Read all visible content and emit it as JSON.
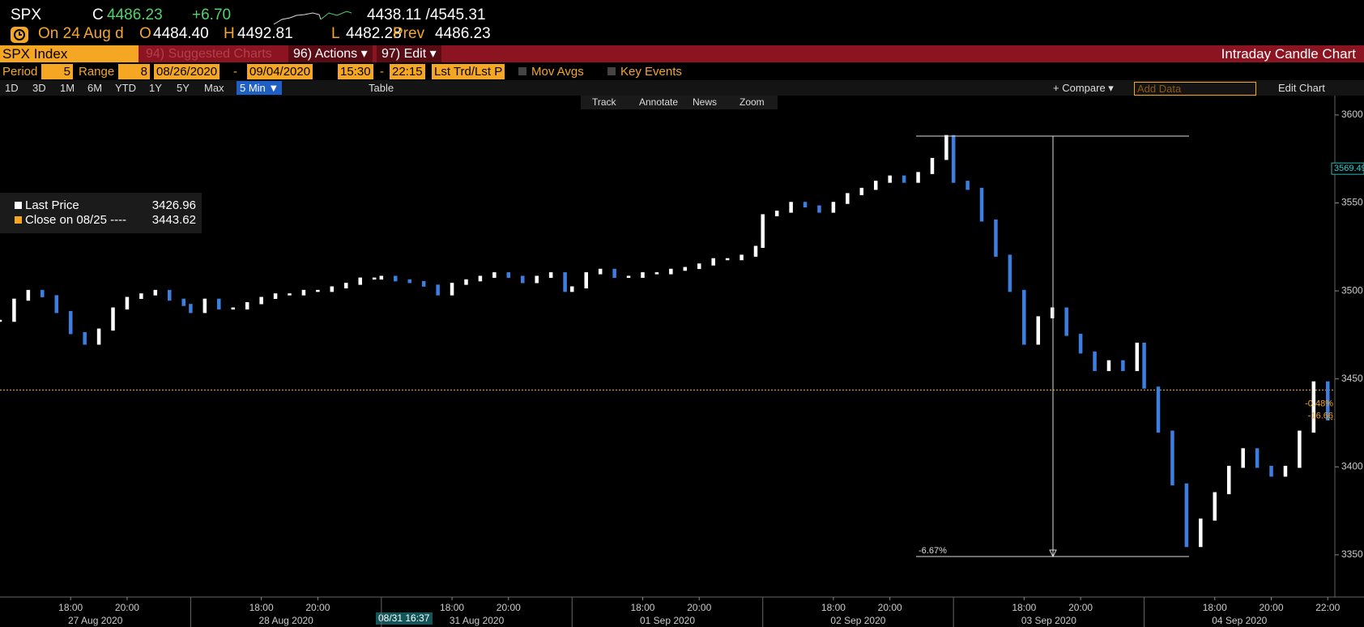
{
  "header": {
    "ticker": "SPX",
    "c": "C",
    "price": "4486.23",
    "change": "+6.70",
    "range": "4438.11 /4545.31",
    "date": "On 24 Aug d",
    "o_label": "O",
    "open": "4484.40",
    "h_label": "H",
    "high": "4492.81",
    "l_label": "L",
    "low": "4482.28",
    "prev_label": "Prev",
    "prev": "4486.23"
  },
  "menu": {
    "security": "SPX Index",
    "suggested": "94) Suggested Charts",
    "actions": "96) Actions ▾",
    "edit": "97) Edit ▾",
    "title": "Intraday Candle Chart"
  },
  "settings": {
    "period_label": "Period",
    "period": "5",
    "range_label": "Range",
    "range": "8",
    "start": "08/26/2020",
    "dash": "-",
    "end": "09/04/2020",
    "time_start": "15:30",
    "time_end": "22:15",
    "mode": "Lst Trd/Lst P",
    "mov_avgs": "Mov Avgs",
    "key_events": "Key Events"
  },
  "toolbar": {
    "ranges": [
      "1D",
      "3D",
      "1M",
      "6M",
      "YTD",
      "1Y",
      "5Y",
      "Max"
    ],
    "interval": "5 Min ▼",
    "table": "Table",
    "compare": "+ Compare ▾",
    "add_data": "Add Data",
    "edit_chart": "Edit Chart",
    "tools": [
      "Track",
      "Annotate",
      "News",
      "Zoom"
    ]
  },
  "cursor_label": "08/31 16:37",
  "chart_data": {
    "type": "candle",
    "title": "Intraday Candle Chart",
    "x": [
      "2020-08-27 15:30",
      "2020-08-27 16:00",
      "2020-08-27 16:30",
      "2020-08-27 17:00",
      "2020-08-27 17:30",
      "2020-08-27 18:00",
      "2020-08-27 18:30",
      "2020-08-27 19:00",
      "2020-08-27 19:30",
      "2020-08-27 20:00",
      "2020-08-27 20:30",
      "2020-08-27 21:00",
      "2020-08-27 21:30",
      "2020-08-27 22:00",
      "2020-08-28 15:30",
      "2020-08-28 16:00",
      "2020-08-28 16:30",
      "2020-08-28 17:00",
      "2020-08-28 17:30",
      "2020-08-28 18:00",
      "2020-08-28 18:30",
      "2020-08-28 19:00",
      "2020-08-28 19:30",
      "2020-08-28 20:00",
      "2020-08-28 20:30",
      "2020-08-28 21:00",
      "2020-08-28 21:30",
      "2020-08-28 22:00",
      "2020-08-31 15:30",
      "2020-08-31 16:00",
      "2020-08-31 16:30",
      "2020-08-31 17:00",
      "2020-08-31 17:30",
      "2020-08-31 18:00",
      "2020-08-31 18:30",
      "2020-08-31 19:00",
      "2020-08-31 19:30",
      "2020-08-31 20:00",
      "2020-08-31 20:30",
      "2020-08-31 21:00",
      "2020-08-31 21:30",
      "2020-08-31 22:00",
      "2020-09-01 15:30",
      "2020-09-01 16:00",
      "2020-09-01 16:30",
      "2020-09-01 17:00",
      "2020-09-01 17:30",
      "2020-09-01 18:00",
      "2020-09-01 18:30",
      "2020-09-01 19:00",
      "2020-09-01 19:30",
      "2020-09-01 20:00",
      "2020-09-01 20:30",
      "2020-09-01 21:00",
      "2020-09-01 21:30",
      "2020-09-01 22:00",
      "2020-09-02 15:30",
      "2020-09-02 16:00",
      "2020-09-02 16:30",
      "2020-09-02 17:00",
      "2020-09-02 17:30",
      "2020-09-02 18:00",
      "2020-09-02 18:30",
      "2020-09-02 19:00",
      "2020-09-02 19:30",
      "2020-09-02 20:00",
      "2020-09-02 20:30",
      "2020-09-02 21:00",
      "2020-09-02 21:30",
      "2020-09-02 22:00",
      "2020-09-03 15:30",
      "2020-09-03 16:00",
      "2020-09-03 16:30",
      "2020-09-03 17:00",
      "2020-09-03 17:30",
      "2020-09-03 18:00",
      "2020-09-03 18:30",
      "2020-09-03 19:00",
      "2020-09-03 19:30",
      "2020-09-03 20:00",
      "2020-09-03 20:30",
      "2020-09-03 21:00",
      "2020-09-03 21:30",
      "2020-09-03 22:00",
      "2020-09-04 15:30",
      "2020-09-04 16:00",
      "2020-09-04 16:30",
      "2020-09-04 17:00",
      "2020-09-04 17:30",
      "2020-09-04 18:00",
      "2020-09-04 18:30",
      "2020-09-04 19:00",
      "2020-09-04 19:30",
      "2020-09-04 20:00",
      "2020-09-04 20:30",
      "2020-09-04 21:00",
      "2020-09-04 21:30",
      "2020-09-04 22:00"
    ],
    "series": [
      {
        "name": "Last Price",
        "color": "#ffffff",
        "down_color": "#3d7fe0",
        "values": [
          3483,
          3495,
          3500,
          3497,
          3488,
          3476,
          3470,
          3478,
          3490,
          3496,
          3498,
          3500,
          3495,
          3492,
          3488,
          3495,
          3490,
          3490,
          3493,
          3496,
          3498,
          3498,
          3500,
          3500,
          3502,
          3504,
          3507,
          3507,
          3508,
          3506,
          3505,
          3503,
          3498,
          3504,
          3506,
          3508,
          3510,
          3508,
          3505,
          3508,
          3510,
          3500,
          3502,
          3510,
          3512,
          3508,
          3508,
          3510,
          3510,
          3512,
          3513,
          3515,
          3518,
          3518,
          3520,
          3525,
          3543,
          3545,
          3550,
          3548,
          3545,
          3550,
          3555,
          3558,
          3562,
          3565,
          3562,
          3567,
          3575,
          3588,
          3562,
          3558,
          3540,
          3520,
          3500,
          3470,
          3485,
          3490,
          3475,
          3465,
          3455,
          3460,
          3455,
          3470,
          3445,
          3420,
          3390,
          3355,
          3370,
          3385,
          3400,
          3410,
          3400,
          3395,
          3400,
          3420,
          3448,
          3426.96
        ]
      }
    ],
    "reference_line": {
      "name": "Close on 08/25 ----",
      "value": 3443.62,
      "color": "#f5a623"
    },
    "change_labels": [
      {
        "value": -0.48,
        "label": "-0.48%"
      },
      -16.66
    ],
    "price_tag": 3569.49,
    "measure": {
      "high": 3588,
      "low": 3349,
      "label": "-6.67%"
    },
    "xlim": [
      "2020-08-27 15:30",
      "2020-09-04 22:15"
    ],
    "xticks": [
      {
        "value": "2020-08-27 18:00",
        "label": "18:00"
      },
      {
        "value": "2020-08-27 20:00",
        "label": "20:00"
      },
      {
        "value": "2020-08-28 18:00",
        "label": "18:00"
      },
      {
        "value": "2020-08-28 20:00",
        "label": "20:00"
      },
      {
        "value": "2020-08-31 18:00",
        "label": "18:00"
      },
      {
        "value": "2020-08-31 20:00",
        "label": "20:00"
      },
      {
        "value": "2020-09-01 18:00",
        "label": "18:00"
      },
      {
        "value": "2020-09-01 20:00",
        "label": "20:00"
      },
      {
        "value": "2020-09-02 18:00",
        "label": "18:00"
      },
      {
        "value": "2020-09-02 20:00",
        "label": "20:00"
      },
      {
        "value": "2020-09-03 18:00",
        "label": "18:00"
      },
      {
        "value": "2020-09-03 20:00",
        "label": "20:00"
      },
      {
        "value": "2020-09-04 18:00",
        "label": "18:00"
      },
      {
        "value": "2020-09-04 20:00",
        "label": "20:00"
      },
      {
        "value": "2020-09-04 22:00",
        "label": "22:00"
      }
    ],
    "x_day_labels": [
      {
        "value": "2020-08-27",
        "label": "27 Aug 2020"
      },
      {
        "value": "2020-08-28",
        "label": "28 Aug 2020"
      },
      {
        "value": "2020-08-31",
        "label": "31 Aug 2020"
      },
      {
        "value": "2020-09-01",
        "label": "01 Sep 2020"
      },
      {
        "value": "2020-09-02",
        "label": "02 Sep 2020"
      },
      {
        "value": "2020-09-03",
        "label": "03 Sep 2020"
      },
      {
        "value": "2020-09-04",
        "label": "04 Sep 2020"
      }
    ],
    "ylim": [
      3326,
      3611
    ],
    "yticks": [
      3350,
      3400,
      3450,
      3500,
      3550,
      3600
    ],
    "y_axis_side": "right"
  }
}
